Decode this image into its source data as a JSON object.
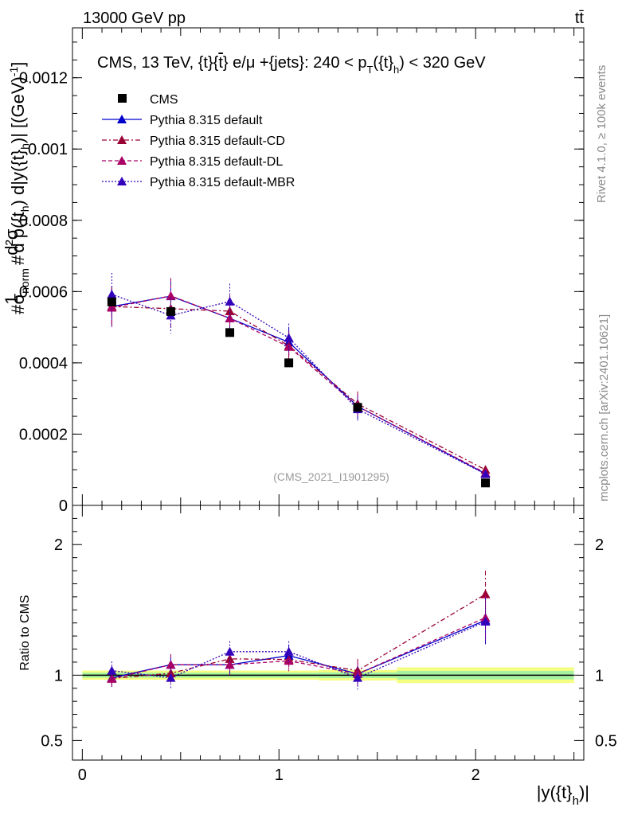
{
  "header": {
    "energy_label": "13000 GeV pp",
    "process_label": "tt̄",
    "side_label_rivet": "Rivet 4.1.0, ≥ 100k events",
    "side_label_mcplots": "mcplots.cern.ch [arXiv:2401.10621]",
    "analysis_id": "(CMS_2021_I1901295)"
  },
  "chart_data": {
    "type": "line",
    "title": "CMS, 13 TeV, {t}{t̄} e/μ +{jets}: 240 < p_T({t}_h) < 320 GeV",
    "title_parts": {
      "prefix": "CMS, 13 TeV, {t}{",
      "tbar": "t",
      "middle": "} e/μ +{jets}: 240 <  p",
      "sub_T": "T",
      "after_T": "({t}",
      "sub_h": "h",
      "suffix": ") < 320 GeV"
    },
    "xlabel": "|y({t}_h)|",
    "xlabel_parts": {
      "main": "|y({t}",
      "sub": "h",
      "end": ")|"
    },
    "ylabel_upper": "1/σ_norm dσ/dp_T({t}_h) d|y({t}_h)| [(GeV)^-1]",
    "ylabel_parts": {
      "prefix": "#",
      "one": "1",
      "sigma_norm": "σ",
      "norm": "norm",
      "hash2": "#",
      "d2sigma": "d²σ",
      "dpt": "d p",
      "paren1": "({t",
      "h1": "h",
      "mid": ") d|y({t}",
      "h2": "h",
      "end": ")| [(GeV)",
      "exp": "-1",
      "close": "]"
    },
    "ylabel_lower": "Ratio to CMS",
    "xlim": [
      -0.05,
      2.55
    ],
    "ylim_upper": [
      0,
      0.00134
    ],
    "ylim_lower": [
      0.35,
      2.3
    ],
    "x_ticks": [
      {
        "v": 0,
        "label": "0"
      },
      {
        "v": 1,
        "label": "1"
      },
      {
        "v": 2,
        "label": "2"
      }
    ],
    "y_ticks_upper": [
      {
        "v": 0,
        "label": "0"
      },
      {
        "v": 0.0002,
        "label": "0.0002"
      },
      {
        "v": 0.0004,
        "label": "0.0004"
      },
      {
        "v": 0.0006,
        "label": "0.0006"
      },
      {
        "v": 0.0008,
        "label": "0.0008"
      },
      {
        "v": 0.001,
        "label": "0.001"
      },
      {
        "v": 0.0012,
        "label": "0.0012"
      }
    ],
    "y_ticks_lower": [
      {
        "v": 0.5,
        "label": "0.5"
      },
      {
        "v": 1,
        "label": "1"
      },
      {
        "v": 2,
        "label": "2"
      }
    ],
    "bins": [
      [
        0,
        0.3
      ],
      [
        0.3,
        0.6
      ],
      [
        0.6,
        0.9
      ],
      [
        0.9,
        1.2
      ],
      [
        1.2,
        1.6
      ],
      [
        1.6,
        2.5
      ]
    ],
    "data": {
      "name": "CMS",
      "color": "#000000",
      "x": [
        0.15,
        0.45,
        0.75,
        1.05,
        1.4,
        2.05
      ],
      "y": [
        0.000571,
        0.000544,
        0.000485,
        0.0004,
        0.000275,
        6.3e-05
      ],
      "rel_err": [
        0.035,
        0.035,
        0.035,
        0.035,
        0.04,
        0.06
      ]
    },
    "series": [
      {
        "name": "Pythia 8.315 default",
        "color": "#0000cc",
        "dash": "",
        "y": [
          0.000558,
          0.000587,
          0.000525,
          0.000458,
          0.000278,
          8.9e-05
        ],
        "err": [
          5.5e-05,
          5e-05,
          4.5e-05,
          4e-05,
          3.5e-05,
          1e-05
        ],
        "ratio": [
          0.98,
          1.08,
          1.08,
          1.15,
          1.01,
          1.42
        ],
        "ratio_err": [
          0.07,
          0.08,
          0.08,
          0.08,
          0.09,
          0.18
        ]
      },
      {
        "name": "Pythia 8.315 default-CD",
        "color": "#990033",
        "dash": "6,3,2,3",
        "y": [
          0.000558,
          0.000552,
          0.000545,
          0.000448,
          0.000285,
          0.0001
        ],
        "err": [
          5.5e-05,
          5e-05,
          4.5e-05,
          4e-05,
          3.5e-05,
          1e-05
        ],
        "ratio": [
          0.975,
          1.015,
          1.125,
          1.12,
          1.035,
          1.62
        ],
        "ratio_err": [
          0.07,
          0.08,
          0.08,
          0.08,
          0.09,
          0.18
        ]
      },
      {
        "name": "Pythia 8.315 default-DL",
        "color": "#aa0066",
        "dash": "5,3",
        "y": [
          0.000555,
          0.000588,
          0.000525,
          0.000445,
          0.000278,
          9.1e-05
        ],
        "err": [
          5.5e-05,
          5e-05,
          4.5e-05,
          4e-05,
          3.5e-05,
          1e-05
        ],
        "ratio": [
          0.972,
          1.08,
          1.08,
          1.11,
          1.01,
          1.44
        ],
        "ratio_err": [
          0.07,
          0.08,
          0.08,
          0.08,
          0.09,
          0.18
        ]
      },
      {
        "name": "Pythia 8.315 default-MBR",
        "color": "#3300bb",
        "dash": "2,2",
        "y": [
          0.000592,
          0.000533,
          0.000572,
          0.00047,
          0.00027,
          8.8e-05
        ],
        "err": [
          6e-05,
          5e-05,
          5e-05,
          4e-05,
          3.5e-05,
          1e-05
        ],
        "ratio": [
          1.035,
          0.98,
          1.18,
          1.18,
          0.98,
          1.41
        ],
        "ratio_err": [
          0.07,
          0.08,
          0.08,
          0.08,
          0.09,
          0.18
        ]
      }
    ]
  }
}
